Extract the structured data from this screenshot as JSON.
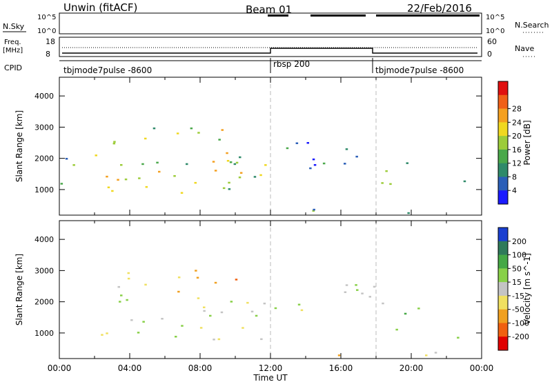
{
  "header": {
    "station": "Unwin (fitACF)",
    "beam": "Beam 01",
    "date": "22/Feb/2016"
  },
  "panels": {
    "nsky_label": "N.Sky",
    "nsky_ticks": [
      "10^5",
      "10^0"
    ],
    "nsearch_label": "N.Search",
    "freq_label_top": "Freq.",
    "freq_label_unit": "[MHz]",
    "freq_ticks": [
      "18",
      "8"
    ],
    "nave_label": "Nave",
    "nave_ticks": [
      "60",
      "0"
    ],
    "cpid_label": "CPID",
    "cpid_segments": [
      "tbjmode7pulse -8600",
      "rbsp 200",
      "tbjmode7pulse -8600"
    ]
  },
  "chart_data": [
    {
      "type": "heatmap",
      "title": "",
      "xlabel": "Time UT",
      "ylabel": "Slant Range [km]",
      "x_ticks": [
        "00:00",
        "04:00",
        "08:00",
        "12:00",
        "16:00",
        "20:00",
        "00:00"
      ],
      "xlim_hours": [
        0,
        24
      ],
      "y_ticks": [
        1000,
        2000,
        3000,
        4000
      ],
      "ylim": [
        180,
        4600
      ],
      "colorbar": {
        "label": "Power [dB]",
        "ticks": [
          4,
          8,
          12,
          16,
          20,
          24,
          28
        ],
        "colors": [
          "#1a1aff",
          "#2b5fb8",
          "#2f8a6a",
          "#4aa84a",
          "#9ccc3a",
          "#f0d820",
          "#f4a020",
          "#f06018",
          "#e01010"
        ]
      },
      "regions": [
        {
          "t": [
            0.0,
            11.7
          ],
          "r": [
            780,
            2300
          ],
          "value": 18
        },
        {
          "t": [
            5.5,
            10.5
          ],
          "r": [
            1400,
            2200
          ],
          "value": 26
        },
        {
          "t": [
            0.0,
            4.0
          ],
          "r": [
            1500,
            2050
          ],
          "value": 14
        },
        {
          "t": [
            3.0,
            10.5
          ],
          "r": [
            2300,
            3100
          ],
          "value": 16
        },
        {
          "t": [
            12.2,
            18.0
          ],
          "r": [
            1700,
            2900
          ],
          "value": 6
        },
        {
          "t": [
            18.0,
            20.4
          ],
          "r": [
            1100,
            2200
          ],
          "value": 12
        },
        {
          "t": [
            22.4,
            24.0
          ],
          "r": [
            800,
            1300
          ],
          "value": 16
        },
        {
          "t": [
            12.0,
            21.5
          ],
          "r": [
            200,
            450
          ],
          "value": 10
        }
      ]
    },
    {
      "type": "heatmap",
      "title": "",
      "xlabel": "Time UT",
      "ylabel": "Slant Range [km]",
      "x_ticks": [
        "00:00",
        "04:00",
        "08:00",
        "12:00",
        "16:00",
        "20:00",
        "00:00"
      ],
      "xlim_hours": [
        0,
        24
      ],
      "y_ticks": [
        1000,
        2000,
        3000,
        4000
      ],
      "ylim": [
        180,
        4600
      ],
      "colorbar": {
        "label": "Velocity [m s^-1]",
        "ticks": [
          200,
          100,
          50,
          15,
          -15,
          -50,
          -100,
          -200
        ],
        "colors": [
          "#1a3fd0",
          "#2f7a5a",
          "#45a845",
          "#88d048",
          "#c4c4c4",
          "#f0e060",
          "#f0a020",
          "#f06010",
          "#e00000"
        ]
      },
      "regions": [
        {
          "t": [
            0.0,
            11.7
          ],
          "r": [
            780,
            2300
          ],
          "value": 0
        },
        {
          "t": [
            3.0,
            10.5
          ],
          "r": [
            2300,
            3100
          ],
          "value": -40
        },
        {
          "t": [
            8.5,
            10.0
          ],
          "r": [
            2500,
            2800
          ],
          "value": -150
        },
        {
          "t": [
            12.2,
            18.0
          ],
          "r": [
            1700,
            2900
          ],
          "value": 5
        },
        {
          "t": [
            18.0,
            20.4
          ],
          "r": [
            1100,
            2200
          ],
          "value": 20
        },
        {
          "t": [
            22.4,
            24.0
          ],
          "r": [
            800,
            1300
          ],
          "value": 0
        },
        {
          "t": [
            12.0,
            21.5
          ],
          "r": [
            200,
            450
          ],
          "value": -30
        }
      ]
    }
  ]
}
